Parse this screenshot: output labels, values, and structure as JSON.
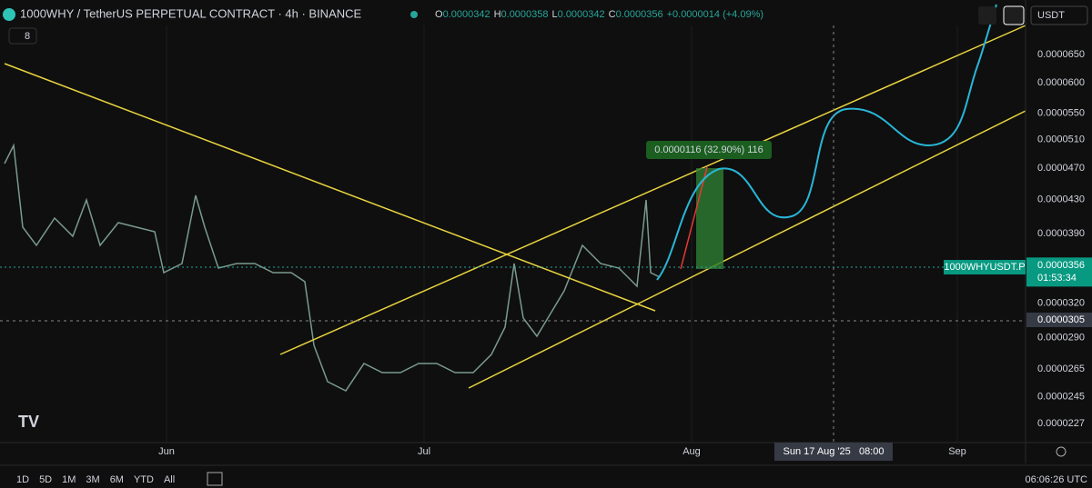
{
  "header": {
    "symbol": "1000WHY / TetherUS PERPETUAL CONTRACT · 4h · BINANCE",
    "open_label": "O",
    "open": "0.0000342",
    "high_label": "H",
    "high": "0.0000358",
    "low_label": "L",
    "low": "0.0000342",
    "close_label": "C",
    "close": "0.0000356",
    "change": "+0.0000014 (+4.09%)",
    "indicators": "8",
    "currency": "USDT"
  },
  "price_axis": {
    "ticks": [
      {
        "value": 6.5e-05,
        "label": "0.0000650"
      },
      {
        "value": 6e-05,
        "label": "0.0000600"
      },
      {
        "value": 5.5e-05,
        "label": "0.0000550"
      },
      {
        "value": 5.1e-05,
        "label": "0.0000510"
      },
      {
        "value": 4.7e-05,
        "label": "0.0000470"
      },
      {
        "value": 4.3e-05,
        "label": "0.0000430"
      },
      {
        "value": 3.9e-05,
        "label": "0.0000390"
      },
      {
        "value": 3.2e-05,
        "label": "0.0000320"
      },
      {
        "value": 2.9e-05,
        "label": "0.0000290"
      },
      {
        "value": 2.65e-05,
        "label": "0.0000265"
      },
      {
        "value": 2.45e-05,
        "label": "0.0000245"
      },
      {
        "value": 2.27e-05,
        "label": "0.0000227"
      }
    ],
    "current": {
      "value": 3.56e-05,
      "label": "0.0000356"
    },
    "symbol_tag": "1000WHYUSDT.P",
    "countdown": "01:53:34",
    "crosshair": {
      "value": 3.05e-05,
      "label": "0.0000305"
    }
  },
  "time_axis": {
    "labels": [
      "Jun",
      "Jul",
      "Aug",
      "Sep"
    ],
    "crosshair": "Sun 17 Aug '25   08:00"
  },
  "measure": "0.0000116 (32.90%) 116",
  "ranges": [
    "1D",
    "5D",
    "1M",
    "3M",
    "6M",
    "YTD",
    "All"
  ],
  "clock": "06:06:26 UTC"
}
